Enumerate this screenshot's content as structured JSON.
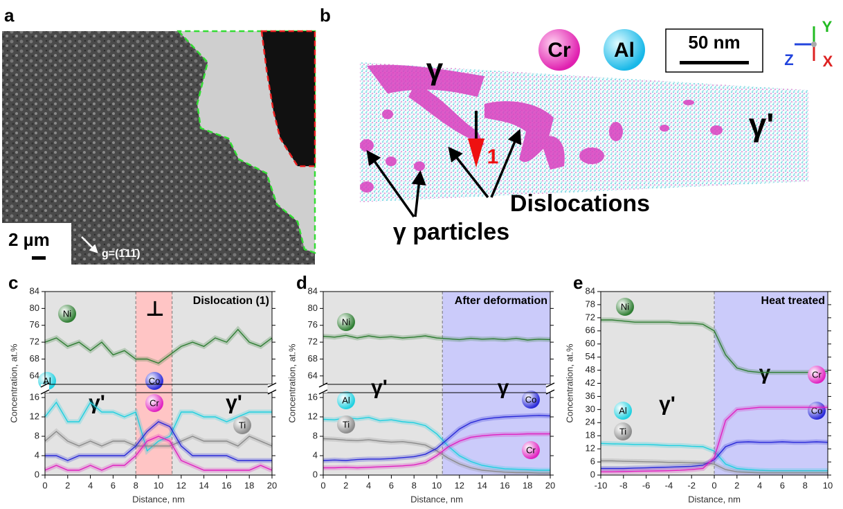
{
  "panel_a": {
    "label": "a",
    "scale_bar": "2 µm",
    "g_vector": "g=(1̄11̄)"
  },
  "panel_b": {
    "label": "b",
    "species": [
      "Cr",
      "Al"
    ],
    "scale_bar": "50 nm",
    "axes": [
      "Y",
      "Z",
      "X"
    ],
    "gamma": "γ",
    "gamma_prime": "γ'",
    "marker": "1",
    "dislocations": "Dislocations",
    "particles": "γ particles"
  },
  "chart_data": [
    {
      "type": "line",
      "panel_label": "c",
      "title": "Dislocation (1)",
      "xlabel": "Distance, nm",
      "ylabel": "Concentration, at.%",
      "x": [
        0,
        1,
        2,
        3,
        4,
        5,
        6,
        7,
        8,
        9,
        10,
        11,
        12,
        13,
        14,
        15,
        16,
        17,
        18,
        19,
        20
      ],
      "xlim": [
        0,
        20
      ],
      "xticks": [
        0,
        2,
        4,
        6,
        8,
        10,
        12,
        14,
        16,
        18,
        20
      ],
      "ylim": [
        0,
        17
      ],
      "yticks": [
        0,
        4,
        8,
        12,
        16
      ],
      "upper_ylim": [
        62,
        84
      ],
      "upper_yticks": [
        64,
        68,
        72,
        76,
        80,
        84
      ],
      "regions": [
        {
          "from": 0,
          "to": 8,
          "color": "#b0b0b0",
          "label": "γ'"
        },
        {
          "from": 8,
          "to": 11.2,
          "color": "#ff5a5a",
          "label": "⊥"
        },
        {
          "from": 11.2,
          "to": 20,
          "color": "#b0b0b0",
          "label": "γ'"
        }
      ],
      "series": [
        {
          "name": "Ni",
          "color": "#2e7d32",
          "axis": "upper",
          "values": [
            72,
            73,
            71,
            72,
            70,
            72,
            69,
            70,
            68,
            68,
            67,
            69,
            71,
            72,
            71,
            73,
            72,
            75,
            72,
            71,
            73
          ]
        },
        {
          "name": "Al",
          "color": "#1fd0e0",
          "values": [
            12,
            15,
            11,
            11,
            15,
            13,
            13,
            12,
            13,
            5,
            7,
            8,
            13,
            13,
            12,
            12,
            11,
            12,
            13,
            13,
            13
          ]
        },
        {
          "name": "Ti",
          "color": "#8a8a8a",
          "values": [
            7,
            9,
            7,
            6,
            7,
            6,
            7,
            7,
            6,
            6,
            6,
            6,
            7,
            8,
            7,
            7,
            7,
            6,
            8,
            7,
            6
          ]
        },
        {
          "name": "Co",
          "color": "#2828d8",
          "values": [
            4,
            4,
            3,
            4,
            4,
            4,
            4,
            4,
            6,
            9,
            11,
            10,
            6,
            4,
            4,
            4,
            4,
            3,
            3,
            3,
            3
          ]
        },
        {
          "name": "Cr",
          "color": "#e020c0",
          "values": [
            1,
            2,
            1,
            1,
            2,
            1,
            2,
            2,
            4,
            7,
            8,
            7,
            3,
            2,
            1,
            1,
            1,
            1,
            1,
            2,
            1
          ]
        }
      ]
    },
    {
      "type": "line",
      "panel_label": "d",
      "title": "After deformation",
      "xlabel": "Distance, nm",
      "ylabel": "Concentration, at.%",
      "x": [
        0,
        1,
        2,
        3,
        4,
        5,
        6,
        7,
        8,
        9,
        10,
        11,
        12,
        13,
        14,
        15,
        16,
        17,
        18,
        19,
        20
      ],
      "xlim": [
        0,
        20
      ],
      "xticks": [
        0,
        2,
        4,
        6,
        8,
        10,
        12,
        14,
        16,
        18,
        20
      ],
      "ylim": [
        0,
        17
      ],
      "yticks": [
        0,
        4,
        8,
        12,
        16
      ],
      "upper_ylim": [
        62,
        84
      ],
      "upper_yticks": [
        64,
        68,
        72,
        76,
        80,
        84
      ],
      "regions": [
        {
          "from": 0,
          "to": 10.5,
          "color": "#b0b0b0",
          "label": "γ'"
        },
        {
          "from": 10.5,
          "to": 20,
          "color": "#6a6af0",
          "label": "γ"
        }
      ],
      "series": [
        {
          "name": "Ni",
          "color": "#2e7d32",
          "axis": "upper",
          "values": [
            73.4,
            73.2,
            73.6,
            73.0,
            73.5,
            73.1,
            73.3,
            73.0,
            73.2,
            73.5,
            73.0,
            72.8,
            72.6,
            72.9,
            72.7,
            72.8,
            72.6,
            72.9,
            72.5,
            72.7,
            72.6
          ]
        },
        {
          "name": "Al",
          "color": "#1fd0e0",
          "values": [
            11.5,
            11.4,
            11.8,
            11.6,
            11.9,
            11.2,
            11.4,
            11.0,
            10.8,
            10.2,
            8.5,
            6.0,
            4.0,
            2.8,
            2.0,
            1.6,
            1.3,
            1.2,
            1.1,
            1.0,
            1.0
          ]
        },
        {
          "name": "Ti",
          "color": "#8a8a8a",
          "values": [
            7.5,
            7.4,
            7.2,
            7.1,
            7.3,
            7.0,
            6.8,
            6.9,
            6.6,
            6.2,
            5.0,
            3.5,
            2.3,
            1.5,
            1.0,
            0.8,
            0.6,
            0.5,
            0.5,
            0.4,
            0.4
          ]
        },
        {
          "name": "Co",
          "color": "#2828d8",
          "values": [
            3.0,
            3.1,
            3.0,
            3.2,
            3.3,
            3.3,
            3.4,
            3.6,
            3.8,
            4.3,
            5.5,
            7.5,
            9.5,
            10.8,
            11.5,
            11.8,
            12.0,
            12.1,
            12.2,
            12.3,
            12.2
          ]
        },
        {
          "name": "Cr",
          "color": "#e020c0",
          "values": [
            1.5,
            1.5,
            1.6,
            1.5,
            1.6,
            1.7,
            1.8,
            1.9,
            2.1,
            2.6,
            4.0,
            5.8,
            7.0,
            7.8,
            8.1,
            8.3,
            8.4,
            8.4,
            8.5,
            8.5,
            8.5
          ]
        }
      ]
    },
    {
      "type": "line",
      "panel_label": "e",
      "title": "Heat treated",
      "xlabel": "Distance, nm",
      "ylabel": "Concentration, at.%",
      "x": [
        -10,
        -9,
        -8,
        -7,
        -6,
        -5,
        -4,
        -3,
        -2,
        -1,
        0,
        1,
        2,
        3,
        4,
        5,
        6,
        7,
        8,
        9,
        10
      ],
      "xlim": [
        -10,
        10
      ],
      "xticks": [
        -10,
        -8,
        -6,
        -4,
        -2,
        0,
        2,
        4,
        6,
        8,
        10
      ],
      "ylim": [
        0,
        84
      ],
      "yticks": [
        0,
        6,
        12,
        18,
        24,
        30,
        36,
        42,
        48,
        54,
        60,
        66,
        72,
        78,
        84
      ],
      "regions": [
        {
          "from": -10,
          "to": 0,
          "color": "#b0b0b0",
          "label": "γ'"
        },
        {
          "from": 0,
          "to": 10,
          "color": "#6a6af0",
          "label": "γ"
        }
      ],
      "series": [
        {
          "name": "Ni",
          "color": "#2e7d32",
          "values": [
            71,
            71,
            70.5,
            70,
            70,
            70,
            70,
            69.5,
            69.5,
            69,
            66,
            55,
            49,
            47.5,
            47,
            47,
            47,
            47,
            47,
            47,
            47.5
          ]
        },
        {
          "name": "Al",
          "color": "#1fd0e0",
          "values": [
            14.5,
            14.3,
            14.2,
            14.0,
            14,
            13.8,
            13.5,
            13.5,
            13.2,
            13,
            11,
            5,
            3,
            2.5,
            2.2,
            2,
            2,
            2,
            2,
            2,
            2
          ]
        },
        {
          "name": "Ti",
          "color": "#8a8a8a",
          "values": [
            6.5,
            6.5,
            6.3,
            6.2,
            6.1,
            6,
            5.8,
            5.8,
            5.6,
            5.5,
            5,
            2.5,
            1.5,
            1.2,
            1,
            1,
            1,
            1,
            1,
            1,
            1
          ]
        },
        {
          "name": "Co",
          "color": "#2828d8",
          "values": [
            3,
            3,
            3,
            3.2,
            3.3,
            3.5,
            3.6,
            3.8,
            4,
            4.5,
            7,
            13,
            15,
            15.2,
            15,
            15,
            15.2,
            15,
            15,
            15.2,
            15
          ]
        },
        {
          "name": "Cr",
          "color": "#e020c0",
          "values": [
            1.5,
            1.5,
            1.6,
            1.7,
            1.8,
            1.9,
            2,
            2.2,
            2.5,
            3,
            8,
            25,
            30,
            30.5,
            31,
            31,
            31,
            31,
            31,
            31,
            31
          ]
        }
      ]
    }
  ]
}
